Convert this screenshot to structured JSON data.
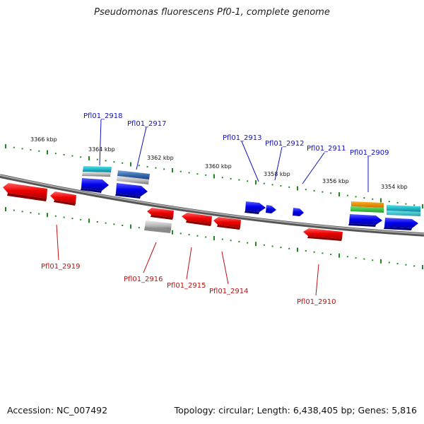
{
  "title": "Pseudomonas fluorescens Pf0-1, complete genome",
  "footer": {
    "accession": "Accession: NC_007492",
    "summary": "Topology: circular; Length: 6,438,405 bp; Genes: 5,816"
  },
  "scale_labels": [
    "3366 kbp",
    "3364 kbp",
    "3362 kbp",
    "3360 kbp",
    "3358 kbp",
    "3356 kbp",
    "3354 kbp"
  ],
  "genes_plus": [
    "Pfl01_2918",
    "Pfl01_2917",
    "Pfl01_2913",
    "Pfl01_2912",
    "Pfl01_2911",
    "Pfl01_2909"
  ],
  "genes_minus": [
    "Pfl01_2919",
    "Pfl01_2916",
    "Pfl01_2915",
    "Pfl01_2914",
    "Pfl01_2910"
  ],
  "colors": {
    "plus_strand": "#1a1aff",
    "minus_strand": "#ff1a1a",
    "plus_label": "#1010c0",
    "minus_label": "#c01010",
    "tick": "#1f8a1f",
    "backbone": "#888888"
  }
}
